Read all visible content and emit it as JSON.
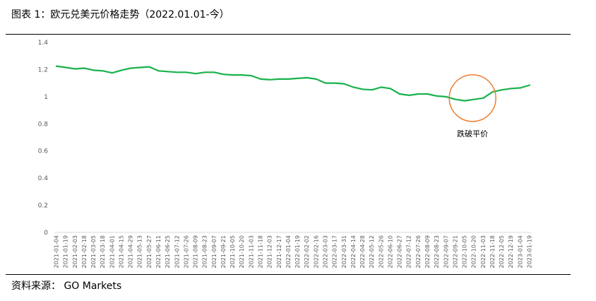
{
  "header": {
    "title": "图表 1：欧元兑美元价格走势（2022.01.01-今）"
  },
  "footer": {
    "source": "资料来源：  GO Markets"
  },
  "colors": {
    "line": "#19b24b",
    "circle": "#ed7d31",
    "axis": "#d9d9d9",
    "text": "#595959"
  },
  "chart_data": {
    "type": "line",
    "ylim": [
      0,
      1.4
    ],
    "yticks": [
      "0",
      "0.2",
      "0.4",
      "0.6",
      "0.8",
      "1",
      "1.2",
      "1.4"
    ],
    "grid": false,
    "x": [
      "2021-01-04",
      "2021-01-19",
      "2021-02-03",
      "2021-02-18",
      "2021-03-05",
      "2021-03-18",
      "2021-04-01",
      "2021-04-15",
      "2021-04-29",
      "2021-05-13",
      "2021-05-27",
      "2021-06-11",
      "2021-06-25",
      "2021-07-12",
      "2021-07-26",
      "2021-08-09",
      "2021-08-23",
      "2021-09-07",
      "2021-09-21",
      "2021-10-05",
      "2021-10-20",
      "2021-11-03",
      "2021-11-18",
      "2021-12-03",
      "2021-12-17",
      "2022-01-04",
      "2022-01-19",
      "2022-02-02",
      "2022-02-16",
      "2022-03-03",
      "2022-03-17",
      "2022-03-31",
      "2022-04-14",
      "2022-04-28",
      "2022-05-12",
      "2022-05-26",
      "2022-06-10",
      "2022-06-27",
      "2022-07-12",
      "2022-07-26",
      "2022-08-09",
      "2022-08-23",
      "2022-09-07",
      "2022-09-21",
      "2022-10-05",
      "2022-10-20",
      "2022-11-03",
      "2022-11-18",
      "2022-12-05",
      "2022-12-19",
      "2023-01-04",
      "2023-01-19"
    ],
    "series": [
      {
        "values": [
          1.225,
          1.215,
          1.205,
          1.21,
          1.195,
          1.19,
          1.175,
          1.195,
          1.21,
          1.215,
          1.22,
          1.19,
          1.185,
          1.18,
          1.18,
          1.17,
          1.18,
          1.18,
          1.165,
          1.16,
          1.16,
          1.155,
          1.13,
          1.125,
          1.13,
          1.13,
          1.135,
          1.14,
          1.13,
          1.1,
          1.1,
          1.095,
          1.07,
          1.055,
          1.05,
          1.07,
          1.06,
          1.02,
          1.01,
          1.02,
          1.02,
          1.005,
          1.0,
          0.98,
          0.97,
          0.98,
          0.99,
          1.035,
          1.05,
          1.06,
          1.065,
          1.085
        ]
      }
    ],
    "annotations": [
      {
        "text": "跌破平价",
        "target_x": "2022-10-20"
      }
    ]
  }
}
